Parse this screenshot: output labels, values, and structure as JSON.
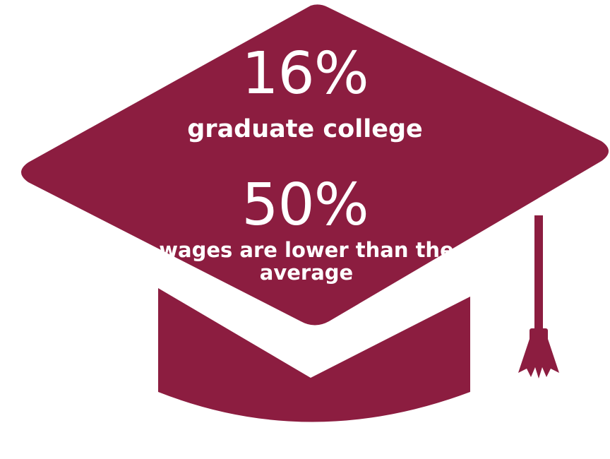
{
  "infographic": {
    "stat1": {
      "value": "16%",
      "label": "graduate college"
    },
    "stat2": {
      "value": "50%",
      "label": "wages are lower than the average"
    },
    "colors": {
      "cap": "#8C1D40",
      "text": "#FFFFFF",
      "background": "#FFFFFF"
    },
    "icon": "graduation-cap-icon"
  }
}
